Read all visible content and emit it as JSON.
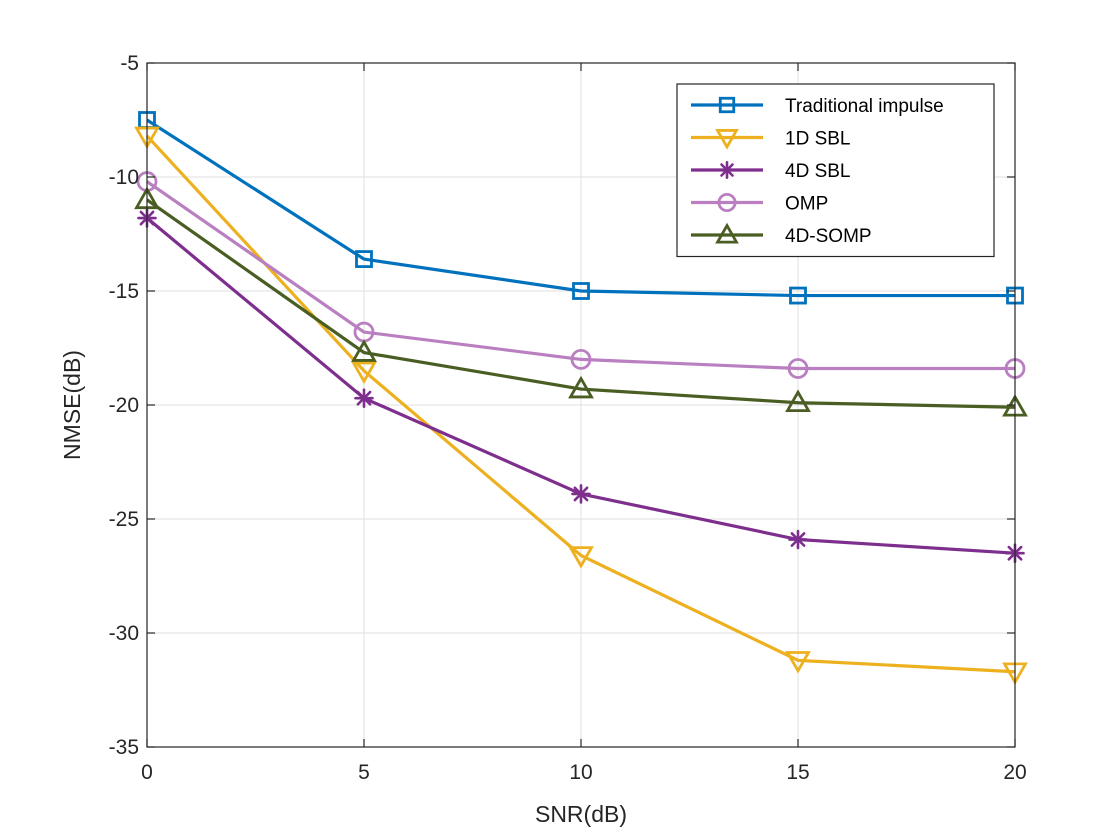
{
  "chart_data": {
    "type": "line",
    "title": "",
    "xlabel": "SNR(dB)",
    "ylabel": "NMSE(dB)",
    "x": [
      0,
      5,
      10,
      15,
      20
    ],
    "xlim": [
      0,
      20
    ],
    "ylim": [
      -35,
      -5
    ],
    "xticks": [
      0,
      5,
      10,
      15,
      20
    ],
    "yticks": [
      -35,
      -30,
      -25,
      -20,
      -15,
      -10,
      -5
    ],
    "grid": true,
    "legend_position": "top-right",
    "series": [
      {
        "name": "Traditional impulse",
        "color": "#0072BD",
        "marker": "square",
        "values": [
          -7.5,
          -13.6,
          -15.0,
          -15.2,
          -15.2
        ]
      },
      {
        "name": "1D SBL",
        "color": "#EDB120",
        "marker": "triangle-down",
        "values": [
          -8.2,
          -18.5,
          -26.6,
          -31.2,
          -31.7
        ]
      },
      {
        "name": "4D SBL",
        "color": "#7E2F8E",
        "marker": "asterisk",
        "values": [
          -11.8,
          -19.7,
          -23.9,
          -25.9,
          -26.5
        ]
      },
      {
        "name": "OMP",
        "color": "#B97FC0",
        "marker": "circle",
        "values": [
          -10.2,
          -16.8,
          -18.0,
          -18.4,
          -18.4
        ]
      },
      {
        "name": "4D-SOMP",
        "color": "#4A5E23",
        "marker": "triangle-up",
        "values": [
          -11.0,
          -17.7,
          -19.3,
          -19.9,
          -20.1
        ]
      }
    ]
  }
}
